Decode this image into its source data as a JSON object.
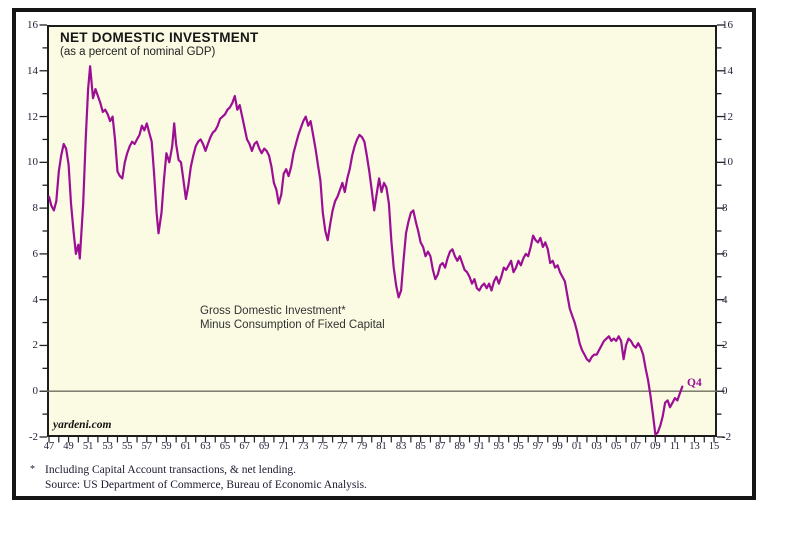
{
  "chart_data": {
    "type": "line",
    "title": "NET DOMESTIC INVESTMENT",
    "subtitle": "(as a percent of nominal GDP)",
    "annotation_line1": "Gross Domestic Investment*",
    "annotation_line2": "Minus Consumption of Fixed Capital",
    "watermark": "yardeni.com",
    "end_label": "Q4",
    "xlabel": "",
    "ylabel": "",
    "xlim": [
      1947,
      2015
    ],
    "ylim": [
      -2,
      16
    ],
    "ytick_step": 2,
    "grid": "zero-line-only",
    "legend": "none",
    "ytick_labels": [
      "16",
      "14",
      "12",
      "10",
      "8",
      "6",
      "4",
      "2",
      "0",
      "-2"
    ],
    "xtick_labels": [
      "47",
      "49",
      "51",
      "53",
      "55",
      "57",
      "59",
      "61",
      "63",
      "65",
      "67",
      "69",
      "71",
      "73",
      "75",
      "77",
      "79",
      "81",
      "83",
      "85",
      "87",
      "89",
      "91",
      "93",
      "95",
      "97",
      "99",
      "01",
      "03",
      "05",
      "07",
      "09",
      "11",
      "13",
      "15"
    ],
    "colors": {
      "line": "#9c0f94",
      "plot_background": "#fbfae3",
      "frame_border": "#141414",
      "zero_line": "#6f6f5f",
      "tick": "#222222",
      "label_text": "#23233a"
    },
    "series": [
      {
        "name": "Net domestic investment (% of nominal GDP), quarterly, 1947-2011Q4",
        "points": [
          [
            1947,
            8.5
          ],
          [
            1947.25,
            8.1
          ],
          [
            1947.5,
            7.9
          ],
          [
            1947.75,
            8.3
          ],
          [
            1948,
            9.6
          ],
          [
            1948.25,
            10.3
          ],
          [
            1948.5,
            10.8
          ],
          [
            1948.75,
            10.6
          ],
          [
            1949,
            9.9
          ],
          [
            1949.25,
            8.2
          ],
          [
            1949.5,
            7.0
          ],
          [
            1949.75,
            6.0
          ],
          [
            1950,
            6.4
          ],
          [
            1950.15,
            5.8
          ],
          [
            1950.5,
            8.2
          ],
          [
            1950.75,
            11.0
          ],
          [
            1951,
            13.2
          ],
          [
            1951.2,
            14.2
          ],
          [
            1951.5,
            12.8
          ],
          [
            1951.75,
            13.2
          ],
          [
            1952,
            12.9
          ],
          [
            1952.25,
            12.6
          ],
          [
            1952.5,
            12.2
          ],
          [
            1952.75,
            12.3
          ],
          [
            1953,
            12.1
          ],
          [
            1953.25,
            11.8
          ],
          [
            1953.5,
            12.0
          ],
          [
            1953.75,
            11.0
          ],
          [
            1954,
            9.6
          ],
          [
            1954.25,
            9.4
          ],
          [
            1954.5,
            9.3
          ],
          [
            1954.75,
            10.0
          ],
          [
            1955,
            10.4
          ],
          [
            1955.25,
            10.7
          ],
          [
            1955.5,
            10.9
          ],
          [
            1955.75,
            10.8
          ],
          [
            1956,
            11.0
          ],
          [
            1956.25,
            11.2
          ],
          [
            1956.5,
            11.6
          ],
          [
            1956.75,
            11.4
          ],
          [
            1957,
            11.7
          ],
          [
            1957.25,
            11.3
          ],
          [
            1957.5,
            10.9
          ],
          [
            1957.75,
            9.5
          ],
          [
            1958,
            7.8
          ],
          [
            1958.2,
            6.9
          ],
          [
            1958.5,
            7.8
          ],
          [
            1958.75,
            9.2
          ],
          [
            1959,
            10.4
          ],
          [
            1959.3,
            10.0
          ],
          [
            1959.6,
            10.7
          ],
          [
            1959.8,
            11.7
          ],
          [
            1960,
            10.8
          ],
          [
            1960.25,
            10.1
          ],
          [
            1960.5,
            10.0
          ],
          [
            1960.75,
            9.2
          ],
          [
            1961,
            8.4
          ],
          [
            1961.25,
            9.0
          ],
          [
            1961.5,
            9.8
          ],
          [
            1961.75,
            10.3
          ],
          [
            1962,
            10.7
          ],
          [
            1962.25,
            10.9
          ],
          [
            1962.5,
            11.0
          ],
          [
            1962.75,
            10.8
          ],
          [
            1963,
            10.5
          ],
          [
            1963.25,
            10.8
          ],
          [
            1963.5,
            11.1
          ],
          [
            1963.75,
            11.3
          ],
          [
            1964,
            11.4
          ],
          [
            1964.25,
            11.6
          ],
          [
            1964.5,
            11.9
          ],
          [
            1964.75,
            12.0
          ],
          [
            1965,
            12.1
          ],
          [
            1965.25,
            12.3
          ],
          [
            1965.5,
            12.4
          ],
          [
            1965.75,
            12.6
          ],
          [
            1966,
            12.9
          ],
          [
            1966.25,
            12.3
          ],
          [
            1966.5,
            12.5
          ],
          [
            1966.75,
            12.0
          ],
          [
            1967,
            11.5
          ],
          [
            1967.25,
            11.0
          ],
          [
            1967.5,
            10.8
          ],
          [
            1967.75,
            10.5
          ],
          [
            1968,
            10.8
          ],
          [
            1968.25,
            10.9
          ],
          [
            1968.5,
            10.6
          ],
          [
            1968.75,
            10.4
          ],
          [
            1969,
            10.6
          ],
          [
            1969.25,
            10.5
          ],
          [
            1969.5,
            10.3
          ],
          [
            1969.75,
            9.8
          ],
          [
            1970,
            9.1
          ],
          [
            1970.25,
            8.8
          ],
          [
            1970.5,
            8.2
          ],
          [
            1970.75,
            8.6
          ],
          [
            1971,
            9.5
          ],
          [
            1971.25,
            9.7
          ],
          [
            1971.5,
            9.4
          ],
          [
            1971.75,
            9.8
          ],
          [
            1972,
            10.4
          ],
          [
            1972.25,
            10.8
          ],
          [
            1972.5,
            11.2
          ],
          [
            1972.75,
            11.5
          ],
          [
            1973,
            11.8
          ],
          [
            1973.25,
            12.0
          ],
          [
            1973.5,
            11.6
          ],
          [
            1973.75,
            11.8
          ],
          [
            1974,
            11.2
          ],
          [
            1974.25,
            10.6
          ],
          [
            1974.5,
            9.9
          ],
          [
            1974.75,
            9.2
          ],
          [
            1975,
            7.8
          ],
          [
            1975.25,
            7.0
          ],
          [
            1975.5,
            6.6
          ],
          [
            1975.75,
            7.3
          ],
          [
            1976,
            7.9
          ],
          [
            1976.25,
            8.3
          ],
          [
            1976.5,
            8.5
          ],
          [
            1976.75,
            8.8
          ],
          [
            1977,
            9.1
          ],
          [
            1977.25,
            8.7
          ],
          [
            1977.5,
            9.3
          ],
          [
            1977.75,
            9.7
          ],
          [
            1978,
            10.3
          ],
          [
            1978.25,
            10.7
          ],
          [
            1978.5,
            11.0
          ],
          [
            1978.75,
            11.2
          ],
          [
            1979,
            11.1
          ],
          [
            1979.25,
            10.9
          ],
          [
            1979.5,
            10.3
          ],
          [
            1979.75,
            9.6
          ],
          [
            1980,
            8.8
          ],
          [
            1980.25,
            7.9
          ],
          [
            1980.5,
            8.6
          ],
          [
            1980.75,
            9.3
          ],
          [
            1981,
            8.7
          ],
          [
            1981.25,
            9.1
          ],
          [
            1981.5,
            8.9
          ],
          [
            1981.75,
            8.2
          ],
          [
            1982,
            6.6
          ],
          [
            1982.25,
            5.4
          ],
          [
            1982.5,
            4.6
          ],
          [
            1982.75,
            4.1
          ],
          [
            1983,
            4.4
          ],
          [
            1983.25,
            5.7
          ],
          [
            1983.5,
            6.9
          ],
          [
            1983.75,
            7.4
          ],
          [
            1984,
            7.8
          ],
          [
            1984.25,
            7.9
          ],
          [
            1984.5,
            7.4
          ],
          [
            1984.75,
            7.0
          ],
          [
            1985,
            6.5
          ],
          [
            1985.25,
            6.3
          ],
          [
            1985.5,
            5.9
          ],
          [
            1985.75,
            6.1
          ],
          [
            1986,
            5.9
          ],
          [
            1986.25,
            5.3
          ],
          [
            1986.5,
            4.9
          ],
          [
            1986.75,
            5.1
          ],
          [
            1987,
            5.5
          ],
          [
            1987.25,
            5.6
          ],
          [
            1987.5,
            5.4
          ],
          [
            1987.75,
            5.8
          ],
          [
            1988,
            6.1
          ],
          [
            1988.25,
            6.2
          ],
          [
            1988.5,
            5.9
          ],
          [
            1988.75,
            5.7
          ],
          [
            1989,
            5.9
          ],
          [
            1989.25,
            5.6
          ],
          [
            1989.5,
            5.3
          ],
          [
            1989.75,
            5.2
          ],
          [
            1990,
            5.0
          ],
          [
            1990.25,
            4.7
          ],
          [
            1990.5,
            4.9
          ],
          [
            1990.75,
            4.5
          ],
          [
            1991,
            4.4
          ],
          [
            1991.25,
            4.6
          ],
          [
            1991.5,
            4.7
          ],
          [
            1991.75,
            4.5
          ],
          [
            1992,
            4.7
          ],
          [
            1992.25,
            4.4
          ],
          [
            1992.5,
            4.8
          ],
          [
            1992.75,
            5.0
          ],
          [
            1993,
            4.7
          ],
          [
            1993.25,
            5.0
          ],
          [
            1993.5,
            5.4
          ],
          [
            1993.75,
            5.3
          ],
          [
            1994,
            5.5
          ],
          [
            1994.25,
            5.7
          ],
          [
            1994.5,
            5.2
          ],
          [
            1994.75,
            5.4
          ],
          [
            1995,
            5.7
          ],
          [
            1995.25,
            5.5
          ],
          [
            1995.5,
            5.8
          ],
          [
            1995.75,
            6.0
          ],
          [
            1996,
            5.9
          ],
          [
            1996.25,
            6.3
          ],
          [
            1996.5,
            6.8
          ],
          [
            1996.75,
            6.6
          ],
          [
            1997,
            6.5
          ],
          [
            1997.25,
            6.7
          ],
          [
            1997.5,
            6.3
          ],
          [
            1997.75,
            6.5
          ],
          [
            1998,
            6.2
          ],
          [
            1998.25,
            5.6
          ],
          [
            1998.5,
            5.7
          ],
          [
            1998.75,
            5.4
          ],
          [
            1999,
            5.5
          ],
          [
            1999.25,
            5.2
          ],
          [
            1999.5,
            5.0
          ],
          [
            1999.75,
            4.8
          ],
          [
            2000,
            4.2
          ],
          [
            2000.25,
            3.6
          ],
          [
            2000.5,
            3.3
          ],
          [
            2000.75,
            3.0
          ],
          [
            2001,
            2.6
          ],
          [
            2001.25,
            2.1
          ],
          [
            2001.5,
            1.8
          ],
          [
            2001.75,
            1.6
          ],
          [
            2002,
            1.4
          ],
          [
            2002.25,
            1.3
          ],
          [
            2002.5,
            1.5
          ],
          [
            2002.75,
            1.6
          ],
          [
            2003,
            1.6
          ],
          [
            2003.25,
            1.8
          ],
          [
            2003.5,
            2.0
          ],
          [
            2003.75,
            2.2
          ],
          [
            2004,
            2.3
          ],
          [
            2004.25,
            2.4
          ],
          [
            2004.5,
            2.2
          ],
          [
            2004.75,
            2.3
          ],
          [
            2005,
            2.2
          ],
          [
            2005.25,
            2.4
          ],
          [
            2005.5,
            2.2
          ],
          [
            2005.75,
            1.4
          ],
          [
            2006,
            2.0
          ],
          [
            2006.25,
            2.3
          ],
          [
            2006.5,
            2.2
          ],
          [
            2006.75,
            2.0
          ],
          [
            2007,
            1.9
          ],
          [
            2007.25,
            2.1
          ],
          [
            2007.5,
            1.9
          ],
          [
            2007.75,
            1.6
          ],
          [
            2008,
            1.0
          ],
          [
            2008.25,
            0.5
          ],
          [
            2008.5,
            -0.2
          ],
          [
            2008.75,
            -1.0
          ],
          [
            2009,
            -1.9
          ],
          [
            2009.25,
            -1.8
          ],
          [
            2009.5,
            -1.5
          ],
          [
            2009.75,
            -1.1
          ],
          [
            2010,
            -0.5
          ],
          [
            2010.25,
            -0.4
          ],
          [
            2010.5,
            -0.7
          ],
          [
            2010.75,
            -0.5
          ],
          [
            2011,
            -0.3
          ],
          [
            2011.25,
            -0.4
          ],
          [
            2011.5,
            -0.1
          ],
          [
            2011.75,
            0.2
          ]
        ]
      }
    ]
  },
  "footnotes": {
    "marker": "*",
    "line1": "Including Capital Account transactions, & net lending.",
    "line2": "Source: US Department of Commerce, Bureau of Economic Analysis."
  }
}
